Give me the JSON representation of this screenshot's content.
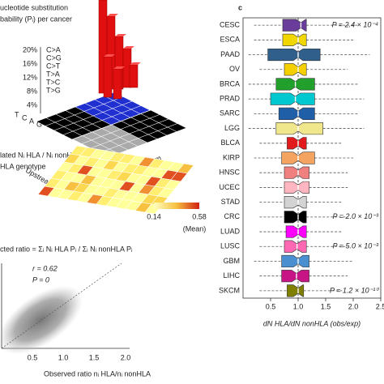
{
  "panel_a": {
    "title_lines": [
      "ucleotide substitution",
      "bability (Pᵢ) per cancer"
    ],
    "legend": [
      "C>A",
      "C>G",
      "C>T",
      "T>A",
      "T>C",
      "T>G"
    ],
    "ytick_labels": [
      "20%",
      "16%",
      "12%",
      "8%",
      "4%"
    ],
    "bases": [
      "T",
      "C",
      "A",
      "G"
    ],
    "upstream": "Upstream",
    "downstream": "Downstream"
  },
  "panel_b": {
    "label_lines": [
      "lated Nᵢ HLA / Nᵢ nonHLA",
      "HLA genotype"
    ],
    "colorbar_labels": [
      "0.14",
      "0.58"
    ],
    "colorbar_title": "(Mean)"
  },
  "panel_scatter": {
    "formula": "cted ratio = Σᵢ Nᵢ HLA Pᵢ / Σᵢ Nᵢ nonHLA Pᵢ",
    "r": "r = 0.62",
    "p": "P = 0",
    "xtick_labels": [
      "0.5",
      "1.0",
      "1.5",
      "2.0"
    ],
    "xlabel": "Observed ratio nᵢ HLA/nᵢ nonHLA"
  },
  "chart_data": {
    "type": "box",
    "panel": "c",
    "categories": [
      "CESC",
      "ESCA",
      "PAAD",
      "OV",
      "BRCA",
      "PRAD",
      "SARC",
      "LGG",
      "BLCA",
      "KIRP",
      "HNSC",
      "UCEC",
      "STAD",
      "CRC",
      "LUAD",
      "LUSC",
      "GBM",
      "LIHC",
      "SKCM"
    ],
    "boxes": [
      {
        "q1": 0.72,
        "median": 1.05,
        "q3": 1.15,
        "low": 0.2,
        "high": 2.1,
        "color": "#6a3d9a"
      },
      {
        "q1": 0.72,
        "median": 1.0,
        "q3": 1.15,
        "low": 0.2,
        "high": 2.0,
        "color": "#f2d600"
      },
      {
        "q1": 0.45,
        "median": 1.0,
        "q3": 1.4,
        "low": 0.1,
        "high": 2.3,
        "color": "#2f5f8a"
      },
      {
        "q1": 0.75,
        "median": 1.0,
        "q3": 1.15,
        "low": 0.3,
        "high": 1.9,
        "color": "#f5d000"
      },
      {
        "q1": 0.6,
        "median": 0.95,
        "q3": 1.3,
        "low": 0.1,
        "high": 2.1,
        "color": "#22a02c"
      },
      {
        "q1": 0.5,
        "median": 0.95,
        "q3": 1.3,
        "low": 0.1,
        "high": 2.2,
        "color": "#00c8d0"
      },
      {
        "q1": 0.65,
        "median": 1.0,
        "q3": 1.3,
        "low": 0.2,
        "high": 2.1,
        "color": "#1f5fa8"
      },
      {
        "q1": 0.6,
        "median": 1.0,
        "q3": 1.45,
        "low": 0.1,
        "high": 2.2,
        "color": "#f0e68c"
      },
      {
        "q1": 0.8,
        "median": 1.0,
        "q3": 1.15,
        "low": 0.3,
        "high": 1.8,
        "color": "#e31a1c"
      },
      {
        "q1": 0.7,
        "median": 1.0,
        "q3": 1.3,
        "low": 0.2,
        "high": 2.0,
        "color": "#f4a460"
      },
      {
        "q1": 0.75,
        "median": 1.0,
        "q3": 1.2,
        "low": 0.3,
        "high": 1.9,
        "color": "#f08080"
      },
      {
        "q1": 0.75,
        "median": 1.0,
        "q3": 1.2,
        "low": 0.3,
        "high": 1.9,
        "color": "#ffb6c1"
      },
      {
        "q1": 0.75,
        "median": 1.0,
        "q3": 1.15,
        "low": 0.3,
        "high": 1.8,
        "color": "#d3d3d3"
      },
      {
        "q1": 0.75,
        "median": 1.0,
        "q3": 1.15,
        "low": 0.3,
        "high": 1.9,
        "color": "#000000"
      },
      {
        "q1": 0.78,
        "median": 1.0,
        "q3": 1.15,
        "low": 0.3,
        "high": 1.8,
        "color": "#ff00ff"
      },
      {
        "q1": 0.75,
        "median": 0.98,
        "q3": 1.15,
        "low": 0.3,
        "high": 1.9,
        "color": "#ff69b4"
      },
      {
        "q1": 0.7,
        "median": 1.0,
        "q3": 1.2,
        "low": 0.2,
        "high": 2.0,
        "color": "#4a90d0"
      },
      {
        "q1": 0.7,
        "median": 0.97,
        "q3": 1.2,
        "low": 0.3,
        "high": 1.9,
        "color": "#c71585"
      },
      {
        "q1": 0.8,
        "median": 1.0,
        "q3": 1.1,
        "low": 0.3,
        "high": 1.8,
        "color": "#808000"
      }
    ],
    "annotations": [
      {
        "category": "CESC",
        "text": "P = 2.4 × 10⁻⁴"
      },
      {
        "category": "CRC",
        "text": "P = 2.0 × 10⁻³"
      },
      {
        "category": "LUSC",
        "text": "P = 5.0 × 10⁻³"
      },
      {
        "category": "SKCM",
        "text": "P = 1.2 × 10⁻¹⁰"
      }
    ],
    "reference_line": 1.0,
    "xlim": [
      0,
      2.5
    ],
    "xticks": [
      {
        "value": 0.5,
        "label": "0.5"
      },
      {
        "value": 1.0,
        "label": "1.0"
      },
      {
        "value": 1.5,
        "label": "1.5"
      },
      {
        "value": 2.0,
        "label": "2.0"
      },
      {
        "value": 2.5,
        "label": "2.5"
      }
    ],
    "xlabel": "dN HLA/dN nonHLA (obs/exp)"
  }
}
